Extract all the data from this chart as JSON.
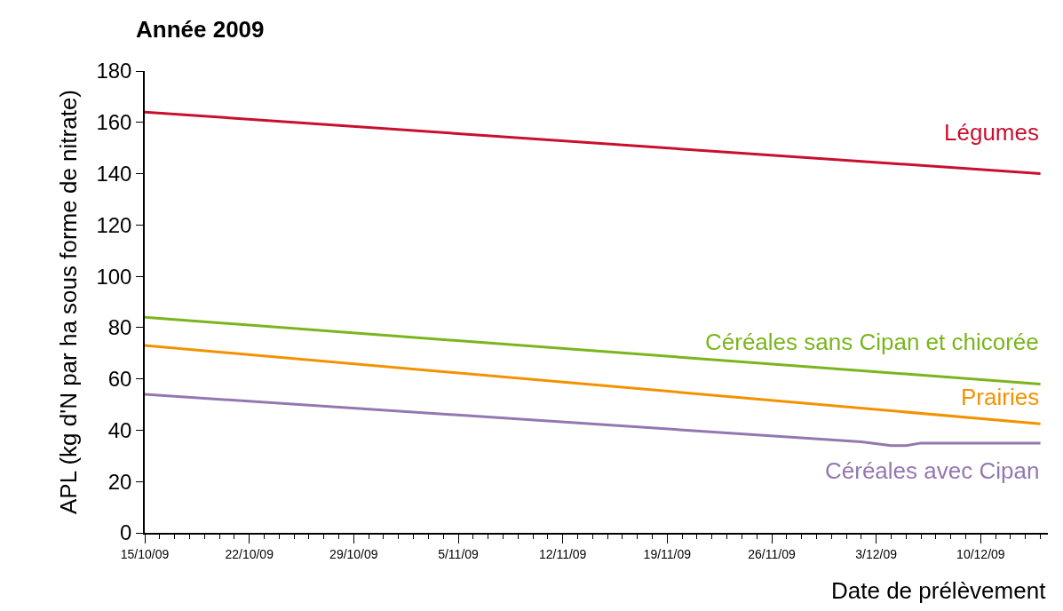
{
  "chart_data": {
    "type": "line",
    "title": "Année 2009",
    "xlabel": "Date de prélèvement",
    "ylabel": "APL (kg d'N par ha sous forme de nitrate)",
    "ylim": [
      0,
      180
    ],
    "yticks": [
      0,
      20,
      40,
      60,
      80,
      100,
      120,
      140,
      160,
      180
    ],
    "xlim": [
      "2009-10-15",
      "2009-12-14T12:00"
    ],
    "xticks": [
      {
        "value": "2009-10-15",
        "label": "15/10/09"
      },
      {
        "value": "2009-10-22",
        "label": "22/10/09"
      },
      {
        "value": "2009-10-29",
        "label": "29/10/09"
      },
      {
        "value": "2009-11-05",
        "label": "5/11/09"
      },
      {
        "value": "2009-11-12",
        "label": "12/11/09"
      },
      {
        "value": "2009-11-19",
        "label": "19/11/09"
      },
      {
        "value": "2009-11-26",
        "label": "26/11/09"
      },
      {
        "value": "2009-12-03",
        "label": "3/12/09"
      },
      {
        "value": "2009-12-10",
        "label": "10/12/09"
      }
    ],
    "legend": false,
    "marker": "none",
    "line_style": "solid",
    "series": [
      {
        "name": "Légumes",
        "color": "#c8102e",
        "x": [
          "2009-10-15",
          "2009-12-14"
        ],
        "values": [
          164,
          140
        ]
      },
      {
        "name": "Céréales sans Cipan et chicorée",
        "color": "#7ab51d",
        "x": [
          "2009-10-15",
          "2009-12-14"
        ],
        "values": [
          84,
          58
        ]
      },
      {
        "name": "Prairies",
        "color": "#f39200",
        "x": [
          "2009-10-15",
          "2009-12-14"
        ],
        "values": [
          73,
          42.5
        ]
      },
      {
        "name": "Céréales avec Cipan",
        "color": "#9477b0",
        "x": [
          "2009-10-15",
          "2009-12-02",
          "2009-12-04",
          "2009-12-05",
          "2009-12-06",
          "2009-12-14"
        ],
        "values": [
          54,
          35.5,
          34,
          34,
          35,
          35
        ]
      }
    ]
  }
}
